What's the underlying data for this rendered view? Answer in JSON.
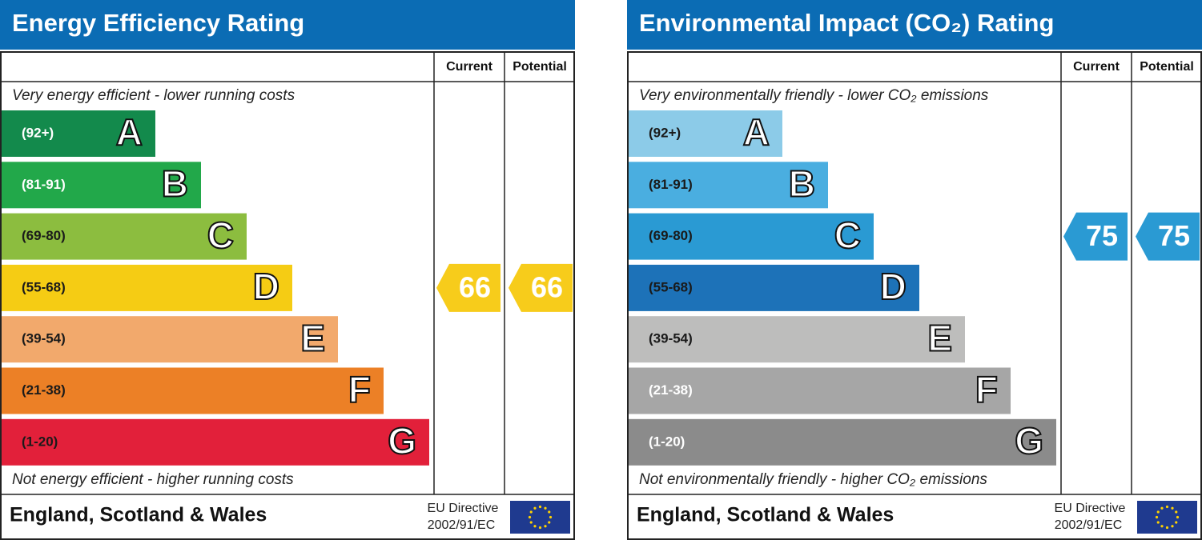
{
  "panels": [
    {
      "title": "Energy Efficiency Rating",
      "current_header": "Current",
      "potential_header": "Potential",
      "top_note": "Very energy efficient - lower running costs",
      "bottom_note": "Not energy efficient - higher running costs",
      "bands": [
        {
          "range": "(92+)",
          "letter": "A",
          "color": "#138a4c",
          "text_color": "#ffffff"
        },
        {
          "range": "(81-91)",
          "letter": "B",
          "color": "#22a84a",
          "text_color": "#ffffff"
        },
        {
          "range": "(69-80)",
          "letter": "C",
          "color": "#8cbd3f",
          "text_color": "#1a1a1a"
        },
        {
          "range": "(55-68)",
          "letter": "D",
          "color": "#f5cc14",
          "text_color": "#1a1a1a"
        },
        {
          "range": "(39-54)",
          "letter": "E",
          "color": "#f2a96c",
          "text_color": "#1a1a1a"
        },
        {
          "range": "(21-38)",
          "letter": "F",
          "color": "#ec8026",
          "text_color": "#1a1a1a"
        },
        {
          "range": "(1-20)",
          "letter": "G",
          "color": "#e2203a",
          "text_color": "#1a1a1a"
        }
      ],
      "current": 66,
      "potential": 66,
      "arrow_color": "#f7cc1b",
      "region": "England, Scotland & Wales",
      "directive": "EU Directive",
      "directive_code": "2002/91/EC"
    },
    {
      "title": "Environmental Impact (CO₂) Rating",
      "current_header": "Current",
      "potential_header": "Potential",
      "top_note": "Very environmentally friendly - lower CO₂ emissions",
      "bottom_note": "Not environmentally friendly - higher CO₂ emissions",
      "bands": [
        {
          "range": "(92+)",
          "letter": "A",
          "color": "#8ccbe8",
          "text_color": "#1a1a1a"
        },
        {
          "range": "(81-91)",
          "letter": "B",
          "color": "#4aaee0",
          "text_color": "#1a1a1a"
        },
        {
          "range": "(69-80)",
          "letter": "C",
          "color": "#2a9ad3",
          "text_color": "#1a1a1a"
        },
        {
          "range": "(55-68)",
          "letter": "D",
          "color": "#1d72b8",
          "text_color": "#1a1a1a"
        },
        {
          "range": "(39-54)",
          "letter": "E",
          "color": "#bdbdbc",
          "text_color": "#1a1a1a"
        },
        {
          "range": "(21-38)",
          "letter": "F",
          "color": "#a6a6a6",
          "text_color": "#ffffff"
        },
        {
          "range": "(1-20)",
          "letter": "G",
          "color": "#8b8b8b",
          "text_color": "#ffffff"
        }
      ],
      "current": 75,
      "potential": 75,
      "arrow_color": "#2a9ad3",
      "region": "England, Scotland & Wales",
      "directive": "EU Directive",
      "directive_code": "2002/91/EC"
    }
  ]
}
